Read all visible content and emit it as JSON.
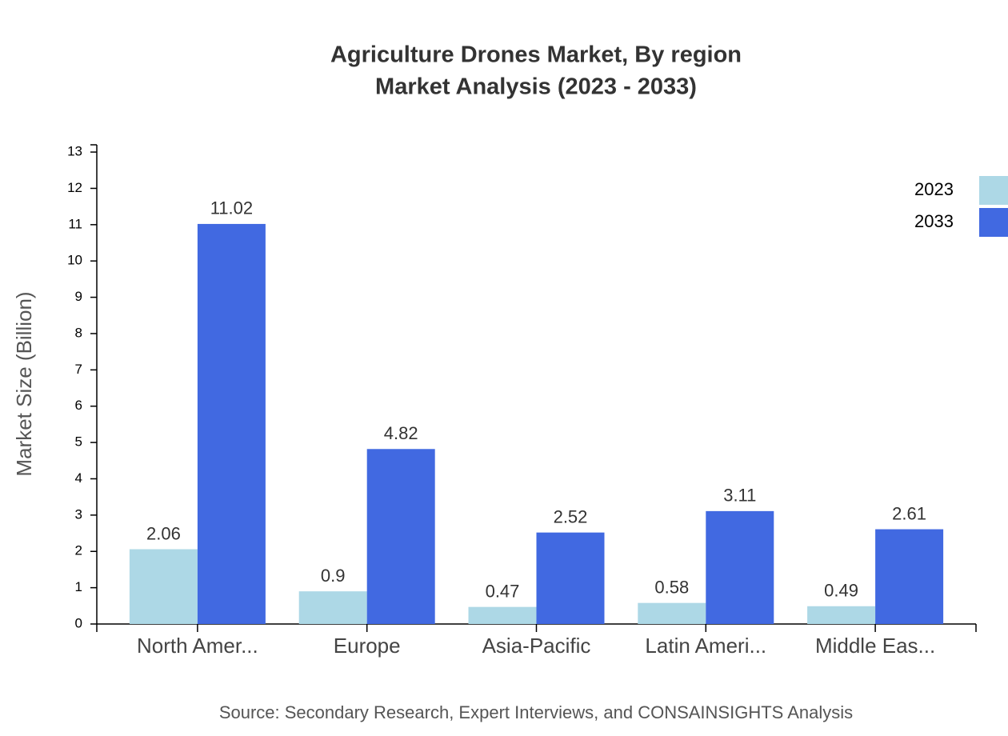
{
  "chart_data": {
    "type": "bar",
    "title": "Agriculture Drones Market, By region",
    "subtitle": "Market Analysis (2023 - 2033)",
    "y_label": "Market Size (Billion)",
    "source": "Source: Secondary Research, Expert Interviews, and CONSAINSIGHTS Analysis",
    "categories": [
      "North Amer...",
      "Europe",
      "Asia-Pacific",
      "Latin Ameri...",
      "Middle Eas..."
    ],
    "series": [
      {
        "name": "2023",
        "color": "#add8e6",
        "values": [
          2.06,
          0.9,
          0.47,
          0.58,
          0.49
        ]
      },
      {
        "name": "2033",
        "color": "#4169e1",
        "values": [
          11.02,
          4.82,
          2.52,
          3.11,
          2.61
        ]
      }
    ],
    "ylim": [
      0,
      13.2
    ],
    "yticks": [
      0,
      1,
      2,
      3,
      4,
      5,
      6,
      7,
      8,
      9,
      10,
      11,
      12,
      13
    ],
    "legend": "top-right"
  }
}
